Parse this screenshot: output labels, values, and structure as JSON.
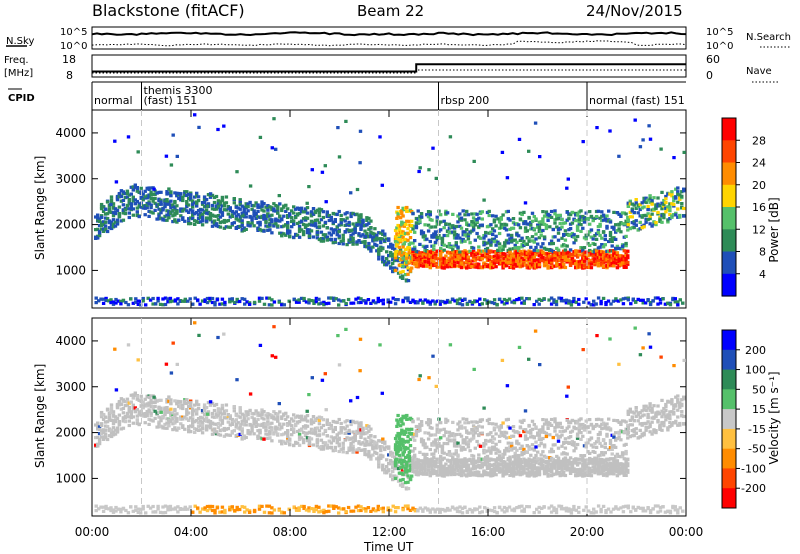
{
  "header": {
    "station": "Blackstone (fitACF)",
    "beam": "Beam 22",
    "date": "24/Nov/2015"
  },
  "strip_labels": {
    "nsky": "N.Sky",
    "nsearch": "N.Search",
    "freq_top": "Freq.",
    "freq_unit": "[MHz]",
    "nave": "Nave",
    "cpid": "CPID",
    "nsky_hi": "10^5",
    "nsky_lo": "10^0",
    "freq_hi": "18",
    "freq_lo": "8",
    "nave_hi": "60",
    "nave_lo": "0"
  },
  "cpid_events": [
    {
      "label": "normal",
      "t": 0,
      "row": 1
    },
    {
      "label": "themis 3300",
      "t": 2.0,
      "row": 0
    },
    {
      "label": "(fast) 151",
      "t": 2.0,
      "row": 1
    },
    {
      "label": "rbsp 200",
      "t": 14.0,
      "row": 1
    },
    {
      "label": "normal (fast) 151",
      "t": 20.0,
      "row": 1
    }
  ],
  "colors": {
    "power": [
      "#0000ff",
      "#1f4fb8",
      "#2e8b57",
      "#55c06a",
      "#ffd400",
      "#ff8c00",
      "#ff4500",
      "#ff0000"
    ],
    "velocity": [
      "#ff0000",
      "#ff4500",
      "#ff8c00",
      "#ffc040",
      "#c8c8c8",
      "#55c06a",
      "#2e8b57",
      "#1f4fb8",
      "#0000ff"
    ],
    "ground": "#c0c0c0"
  },
  "chart_data": [
    {
      "type": "heatmap",
      "name": "power",
      "ylabel": "Slant Range [km]",
      "yticks": [
        1000,
        2000,
        3000,
        4000
      ],
      "ylim": [
        180,
        4500
      ],
      "xlim": [
        0,
        24
      ],
      "colorbar_label": "Power [dB]",
      "colorbar_ticks": [
        "28",
        "24",
        "20",
        "16",
        "12",
        "8",
        "4"
      ],
      "clim": [
        0,
        32
      ]
    },
    {
      "type": "heatmap",
      "name": "velocity",
      "ylabel": "Slant Range [km]",
      "yticks": [
        1000,
        2000,
        3000,
        4000
      ],
      "ylim": [
        180,
        4500
      ],
      "xlim": [
        0,
        24
      ],
      "colorbar_label": "Velocity [m s⁻¹]",
      "colorbar_ticks": [
        "200",
        "100",
        "50",
        "15",
        "-15",
        "-50",
        "-100",
        "-200"
      ],
      "clim": [
        -250,
        250
      ]
    }
  ],
  "xaxis": {
    "label": "Time UT",
    "ticks": [
      {
        "t": 0,
        "label": "00:00"
      },
      {
        "t": 4,
        "label": "04:00"
      },
      {
        "t": 8,
        "label": "08:00"
      },
      {
        "t": 12,
        "label": "12:00"
      },
      {
        "t": 16,
        "label": "16:00"
      },
      {
        "t": 20,
        "label": "20:00"
      },
      {
        "t": 24,
        "label": "00:00"
      }
    ]
  },
  "freq_series": {
    "t_switch": 13.1,
    "low_mhz": 10.5,
    "high_mhz": 13.8
  }
}
